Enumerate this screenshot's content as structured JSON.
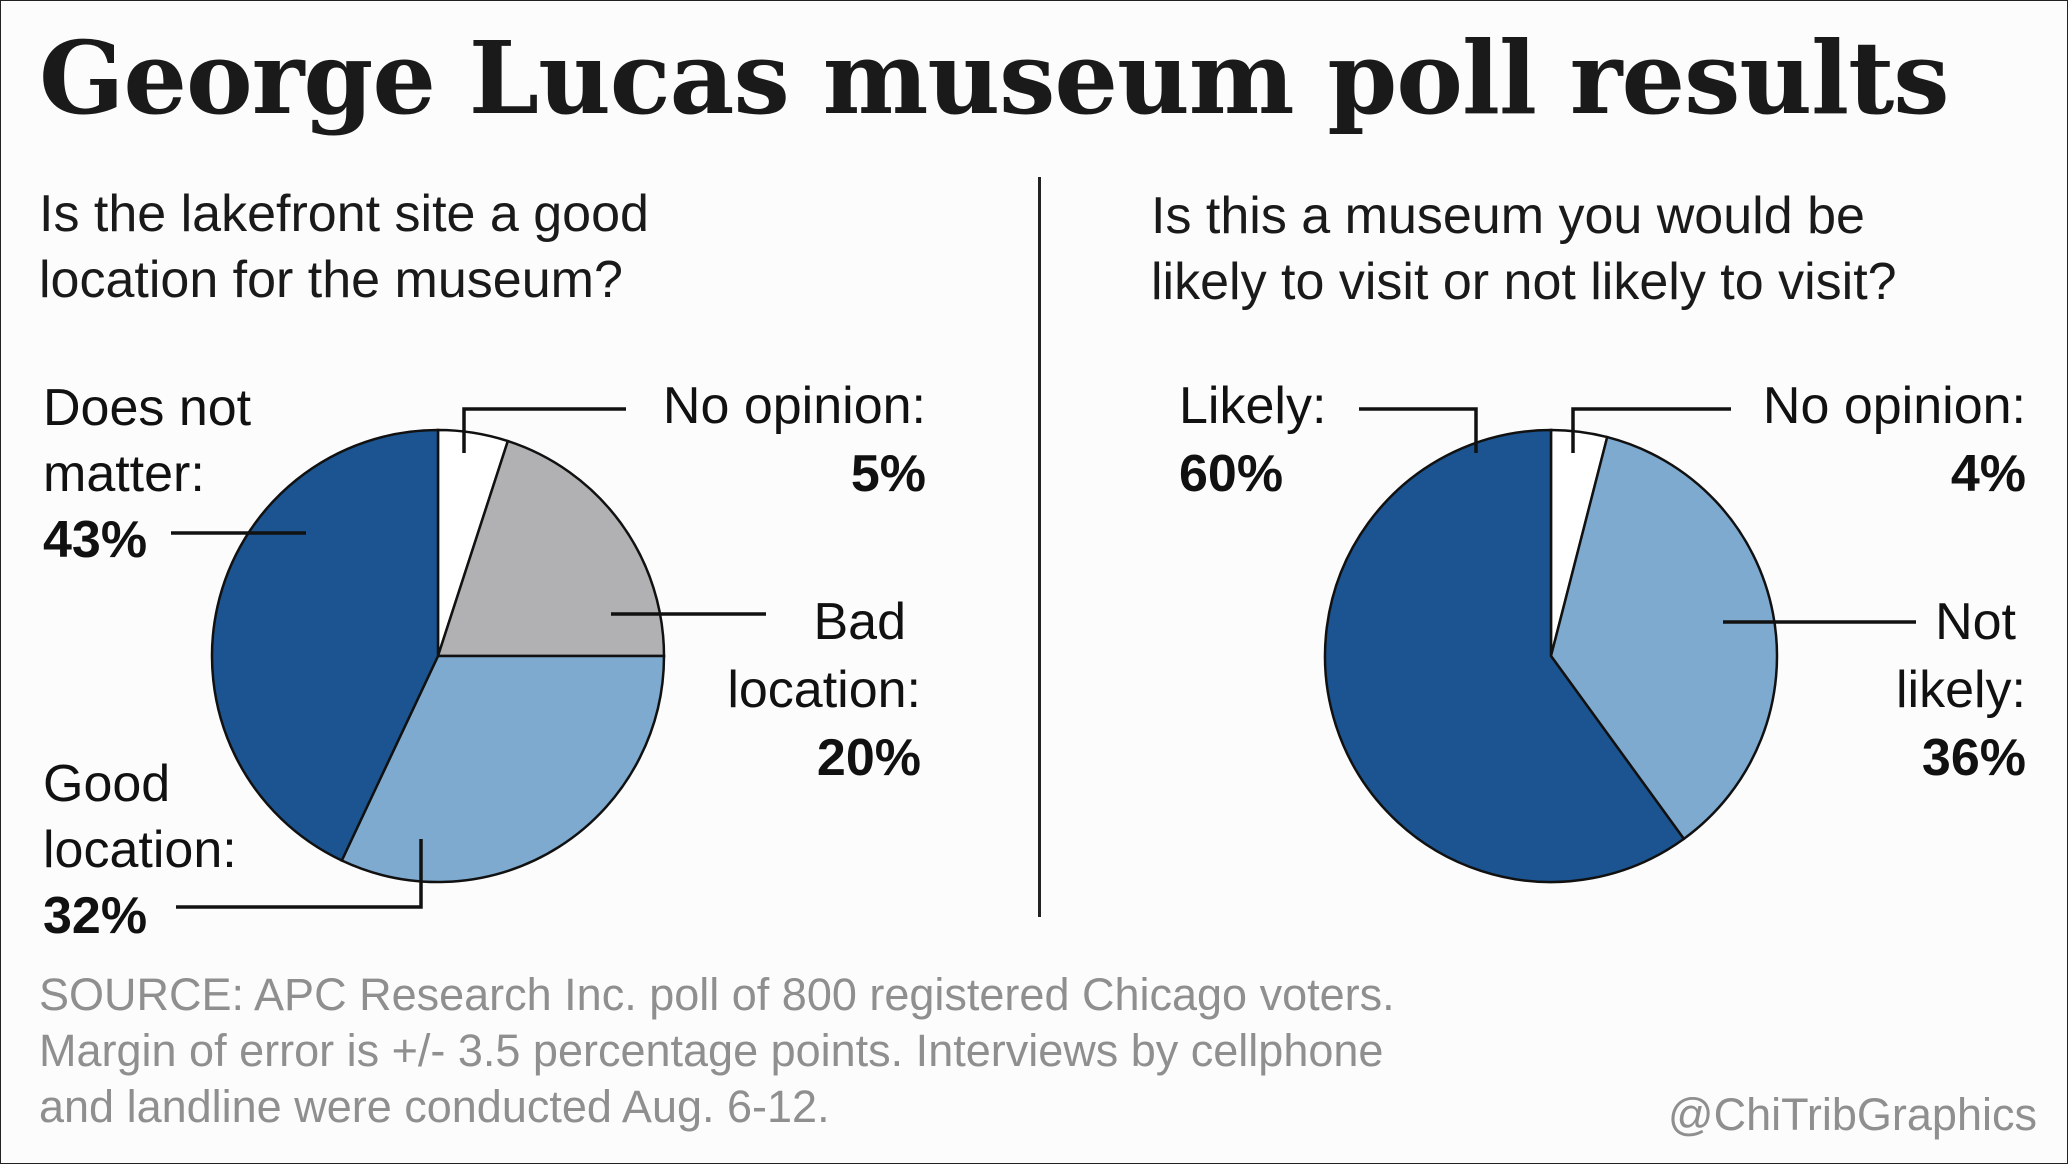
{
  "title": "George Lucas museum poll results",
  "source_lines": [
    "SOURCE: APC Research Inc. poll of 800 registered Chicago voters.",
    "Margin of error is +/- 3.5 percentage points. Interviews by cellphone",
    "and landline were conducted Aug. 6-12."
  ],
  "credit": "@ChiTribGraphics",
  "colors": {
    "dark_blue": "#1b5490",
    "light_blue": "#7eaacf",
    "gray": "#b1b1b3",
    "white": "#ffffff"
  },
  "chart_data": [
    {
      "type": "pie",
      "question_lines": [
        "Is the lakefront site a good",
        "location for the museum?"
      ],
      "slices": [
        {
          "label_lines": [
            "No opinion:"
          ],
          "value_text": "5%",
          "value": 5,
          "color": "#ffffff"
        },
        {
          "label_lines": [
            "Bad",
            "location:"
          ],
          "value_text": "20%",
          "value": 20,
          "color": "#b1b1b3"
        },
        {
          "label_lines": [
            "Good",
            "location:"
          ],
          "value_text": "32%",
          "value": 32,
          "color": "#7eaacf"
        },
        {
          "label_lines": [
            "Does not",
            "matter:"
          ],
          "value_text": "43%",
          "value": 43,
          "color": "#1b5490"
        }
      ]
    },
    {
      "type": "pie",
      "question_lines": [
        "Is this a museum you would be",
        "likely to visit or not likely to visit?"
      ],
      "slices": [
        {
          "label_lines": [
            "No opinion:"
          ],
          "value_text": "4%",
          "value": 4,
          "color": "#ffffff"
        },
        {
          "label_lines": [
            "Not",
            "likely:"
          ],
          "value_text": "36%",
          "value": 36,
          "color": "#7eaacf"
        },
        {
          "label_lines": [
            "Likely:"
          ],
          "value_text": "60%",
          "value": 60,
          "color": "#1b5490"
        }
      ]
    }
  ]
}
